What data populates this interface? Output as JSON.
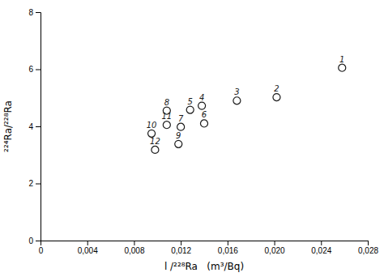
{
  "chart_data": {
    "type": "scatter",
    "x": [
      0.0258,
      0.0202,
      0.0168,
      0.0138,
      0.0128,
      0.014,
      0.012,
      0.0108,
      0.0118,
      0.0095,
      0.0108,
      0.0098
    ],
    "values": [
      6.05,
      5.02,
      4.9,
      4.72,
      4.58,
      4.1,
      3.98,
      4.55,
      3.38,
      3.75,
      4.05,
      3.18
    ],
    "labels": [
      "1",
      "2",
      "3",
      "4",
      "5",
      "6",
      "7",
      "8",
      "9",
      "10",
      "11",
      "12"
    ],
    "xlabel": "l /²²⁸Ra   (m³/Bq)",
    "ylabel": "²²⁴Ra/²²⁸Ra",
    "xlim": [
      0,
      0.028
    ],
    "ylim": [
      0,
      8
    ],
    "xticks": [
      0,
      {
        "value": 0.004,
        "label": "0,004"
      },
      {
        "value": 0.008,
        "label": "0,008"
      },
      {
        "value": 0.012,
        "label": "0,012"
      },
      {
        "value": 0.016,
        "label": "0,016"
      },
      {
        "value": 0.02,
        "label": "0,020"
      },
      {
        "value": 0.024,
        "label": "0,024"
      },
      {
        "value": 0.028,
        "label": "0,028"
      }
    ],
    "yticks": [
      0,
      2,
      4,
      6,
      8
    ],
    "color": "#1a1a1a",
    "marker": "circle"
  }
}
